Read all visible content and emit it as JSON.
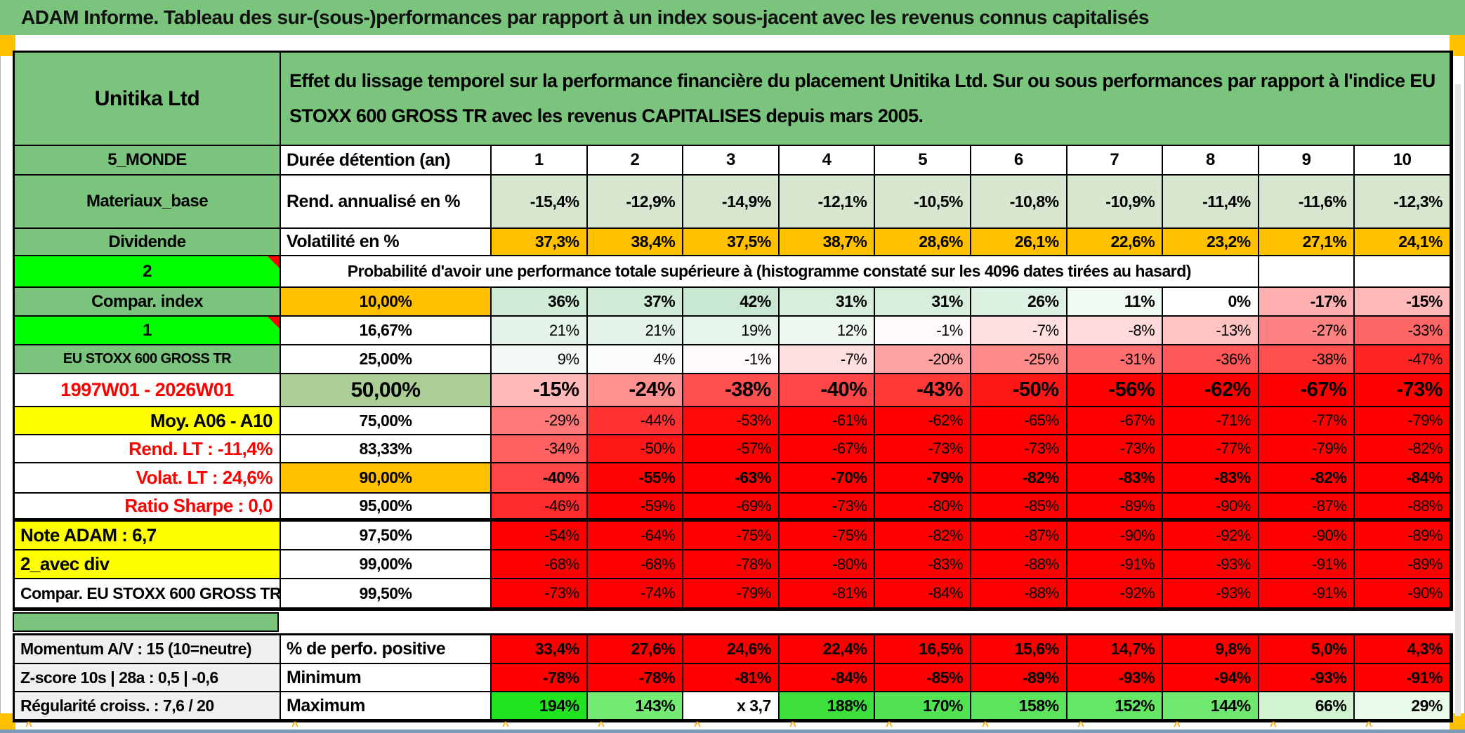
{
  "title": "ADAM Informe. Tableau des sur-(sous-)performances par rapport à un index sous-jacent avec les revenus connus capitalisés",
  "header": {
    "company": "Unitika Ltd",
    "description": "Effet du lissage temporel sur la performance financière du placement Unitika Ltd. Sur ou sous performances par rapport à l'indice EU STOXX 600 GROSS TR avec les revenus CAPITALISES depuis mars 2005."
  },
  "palette": {
    "band_green": "#7BC47D",
    "bright_green": "#00FF00",
    "light_green": "#D7E7CF",
    "mid_green": "#AACE96",
    "orange": "#FFC000",
    "yellow": "#FFFF00",
    "red": "#FF0000",
    "gray": "#EFEFEF"
  },
  "columns": [
    "1",
    "2",
    "3",
    "4",
    "5",
    "6",
    "7",
    "8",
    "9",
    "10"
  ],
  "header_row": {
    "label": "5_MONDE",
    "metric": "Durée détention (an)"
  },
  "meta_rows": [
    {
      "label": "Materiaux_base",
      "metric": "Rend. annualisé en %",
      "cell_bg": "#D7E7CF",
      "values": [
        "-15,4%",
        "-12,9%",
        "-14,9%",
        "-12,1%",
        "-10,5%",
        "-10,8%",
        "-10,9%",
        "-11,4%",
        "-11,6%",
        "-12,3%"
      ]
    },
    {
      "label": "Dividende",
      "metric": "Volatilité en %",
      "cell_bg": "#FFC000",
      "values": [
        "37,3%",
        "38,4%",
        "37,5%",
        "38,7%",
        "28,6%",
        "26,1%",
        "22,6%",
        "23,2%",
        "27,1%",
        "24,1%"
      ]
    }
  ],
  "proba_header": {
    "label": "2",
    "text": "Probabilité d'avoir une performance totale supérieure à (histogramme constaté sur les 4096 dates tirées au hasard)"
  },
  "proba_rows": [
    {
      "label": "Compar. index",
      "label_bg": "#7BC47D",
      "label_fg": "#000000",
      "label_align": "center",
      "label_size": 24,
      "threshold": "10,00%",
      "threshold_bg": "#FFC000",
      "bold": true,
      "values": [
        "36%",
        "37%",
        "42%",
        "31%",
        "31%",
        "26%",
        "11%",
        "0%",
        "-17%",
        "-15%"
      ],
      "cell_colors": [
        "#D0ECD7",
        "#CFEBD6",
        "#C8E8D1",
        "#D7EEDD",
        "#D7EEDD",
        "#DDF1E2",
        "#F1F9F3",
        "#FFFFFF",
        "#FFB0B0",
        "#FFB9B9"
      ]
    },
    {
      "label": "1",
      "label_bg": "#00FF00",
      "label_fg": "#000000",
      "label_align": "center",
      "label_size": 24,
      "marker": true,
      "threshold": "16,67%",
      "threshold_bg": "#FFFFFF",
      "bold": false,
      "values": [
        "21%",
        "21%",
        "19%",
        "12%",
        "-1%",
        "-7%",
        "-8%",
        "-13%",
        "-27%",
        "-33%"
      ],
      "cell_colors": [
        "#E4F4E8",
        "#E4F4E8",
        "#E6F5EA",
        "#EFF9F2",
        "#FFFAFA",
        "#FFDFDF",
        "#FFDADA",
        "#FFC3C3",
        "#FF8282",
        "#FF6666"
      ]
    },
    {
      "label": "EU STOXX 600 GROSS TR",
      "label_bg": "#7BC47D",
      "label_fg": "#000000",
      "label_align": "center",
      "label_size": 20,
      "threshold": "25,00%",
      "threshold_bg": "#FFFFFF",
      "bold": false,
      "values": [
        "9%",
        "4%",
        "-1%",
        "-7%",
        "-20%",
        "-25%",
        "-31%",
        "-36%",
        "-38%",
        "-47%"
      ],
      "cell_colors": [
        "#F3FAF5",
        "#FAFDFB",
        "#FFFAFA",
        "#FFDFDF",
        "#FFA2A2",
        "#FF8B8B",
        "#FF6F6F",
        "#FF5858",
        "#FF4F4F",
        "#FF2525"
      ]
    },
    {
      "label": "1997W01 - 2026W01",
      "label_bg": "#FFFFFF",
      "label_fg": "#FF0000",
      "label_align": "center",
      "label_size": 27,
      "threshold": "50,00%",
      "threshold_bg": "#AACE96",
      "threshold_size": 30,
      "bold": true,
      "big": true,
      "values": [
        "-15%",
        "-24%",
        "-38%",
        "-40%",
        "-43%",
        "-50%",
        "-56%",
        "-62%",
        "-67%",
        "-73%"
      ],
      "cell_colors": [
        "#FFB9B9",
        "#FF9090",
        "#FF4F4F",
        "#FF4646",
        "#FF3838",
        "#FF1717",
        "#FF0000",
        "#FF0000",
        "#FF0000",
        "#FF0000"
      ]
    },
    {
      "label": "Moy. A06 - A10",
      "label_bg": "#FFFF00",
      "label_fg": "#000000",
      "label_align": "right",
      "label_size": 26,
      "threshold": "75,00%",
      "threshold_bg": "#FFFFFF",
      "bold": false,
      "values": [
        "-29%",
        "-44%",
        "-53%",
        "-61%",
        "-62%",
        "-65%",
        "-67%",
        "-71%",
        "-77%",
        "-79%"
      ],
      "cell_colors": [
        "#FF7979",
        "#FF3333",
        "#FF0909",
        "#FF0000",
        "#FF0000",
        "#FF0000",
        "#FF0000",
        "#FF0000",
        "#FF0000",
        "#FF0000"
      ]
    },
    {
      "label": "Rend. LT :   -11,4%",
      "label_bg": "#FFFFFF",
      "label_fg": "#FF0000",
      "label_align": "right",
      "label_size": 26,
      "threshold": "83,33%",
      "threshold_bg": "#FFFFFF",
      "bold": false,
      "values": [
        "-34%",
        "-50%",
        "-57%",
        "-67%",
        "-73%",
        "-73%",
        "-73%",
        "-77%",
        "-79%",
        "-82%"
      ],
      "cell_colors": [
        "#FF6161",
        "#FF1717",
        "#FF0000",
        "#FF0000",
        "#FF0000",
        "#FF0000",
        "#FF0000",
        "#FF0000",
        "#FF0000",
        "#FF0000"
      ]
    },
    {
      "label": "Volat. LT :   24,6%",
      "label_bg": "#FFFFFF",
      "label_fg": "#FF0000",
      "label_align": "right",
      "label_size": 26,
      "threshold": "90,00%",
      "threshold_bg": "#FFC000",
      "bold": true,
      "values": [
        "-40%",
        "-55%",
        "-63%",
        "-70%",
        "-79%",
        "-82%",
        "-83%",
        "-83%",
        "-82%",
        "-84%"
      ],
      "cell_colors": [
        "#FF4646",
        "#FF0202",
        "#FF0000",
        "#FF0000",
        "#FF0000",
        "#FF0000",
        "#FF0000",
        "#FF0000",
        "#FF0000",
        "#FF0000"
      ]
    },
    {
      "label": "Ratio Sharpe :   0,0",
      "label_bg": "#FFFFFF",
      "label_fg": "#FF0000",
      "label_align": "right",
      "label_size": 26,
      "thick": true,
      "threshold": "95,00%",
      "threshold_bg": "#FFFFFF",
      "bold": false,
      "values": [
        "-46%",
        "-59%",
        "-69%",
        "-73%",
        "-80%",
        "-85%",
        "-89%",
        "-90%",
        "-87%",
        "-88%"
      ],
      "cell_colors": [
        "#FF2A2A",
        "#FF0000",
        "#FF0000",
        "#FF0000",
        "#FF0000",
        "#FF0000",
        "#FF0000",
        "#FF0000",
        "#FF0000",
        "#FF0000"
      ]
    },
    {
      "label": "Note ADAM : 6,7",
      "label_bg": "#FFFF00",
      "label_fg": "#000000",
      "label_align": "left",
      "label_size": 26,
      "threshold": "97,50%",
      "threshold_bg": "#FFFFFF",
      "bold": false,
      "cell_bg": "#FF0000",
      "values": [
        "-54%",
        "-64%",
        "-75%",
        "-75%",
        "-82%",
        "-87%",
        "-90%",
        "-92%",
        "-90%",
        "-89%"
      ]
    },
    {
      "label": "2_avec div",
      "label_bg": "#FFFF00",
      "label_fg": "#000000",
      "label_align": "left",
      "label_size": 26,
      "threshold": "99,00%",
      "threshold_bg": "#FFFFFF",
      "bold": false,
      "cell_bg": "#FF0000",
      "values": [
        "-68%",
        "-68%",
        "-78%",
        "-80%",
        "-83%",
        "-88%",
        "-91%",
        "-93%",
        "-91%",
        "-89%"
      ]
    },
    {
      "label": "Compar. EU STOXX 600 GROSS TR",
      "label_bg": "#FFFFFF",
      "label_fg": "#000000",
      "label_align": "left",
      "label_size": 23,
      "threshold": "99,50%",
      "threshold_bg": "#FFFFFF",
      "bold": false,
      "cell_bg": "#FF0000",
      "values": [
        "-73%",
        "-74%",
        "-79%",
        "-81%",
        "-84%",
        "-88%",
        "-92%",
        "-93%",
        "-91%",
        "-90%"
      ]
    }
  ],
  "footer_rows": [
    {
      "label": "Momentum A/V : 15 (10=neutre)",
      "metric": "% de perfo. positive",
      "cell_bg": "#FF0000",
      "bold": true,
      "values": [
        "33,4%",
        "27,6%",
        "24,6%",
        "22,4%",
        "16,5%",
        "15,6%",
        "14,7%",
        "9,8%",
        "5,0%",
        "4,3%"
      ]
    },
    {
      "label": "Z-score 10s | 28a : 0,5 | -0,6",
      "metric": "Minimum",
      "cell_bg": "#FF0000",
      "bold": true,
      "values": [
        "-78%",
        "-78%",
        "-81%",
        "-84%",
        "-85%",
        "-89%",
        "-93%",
        "-94%",
        "-93%",
        "-91%"
      ]
    },
    {
      "label": "Régularité croiss. : 7,6 / 20",
      "metric": "Maximum",
      "bold": true,
      "values": [
        "194%",
        "143%",
        "x 3,7",
        "188%",
        "170%",
        "158%",
        "152%",
        "144%",
        "66%",
        "29%"
      ],
      "cell_colors": [
        "#1FE51F",
        "#74EC74",
        "#FFFFFF",
        "#3CDF3C",
        "#52E352",
        "#5DE45D",
        "#65E665",
        "#70E870",
        "#CFF4CF",
        "#E8FAE8"
      ]
    }
  ]
}
